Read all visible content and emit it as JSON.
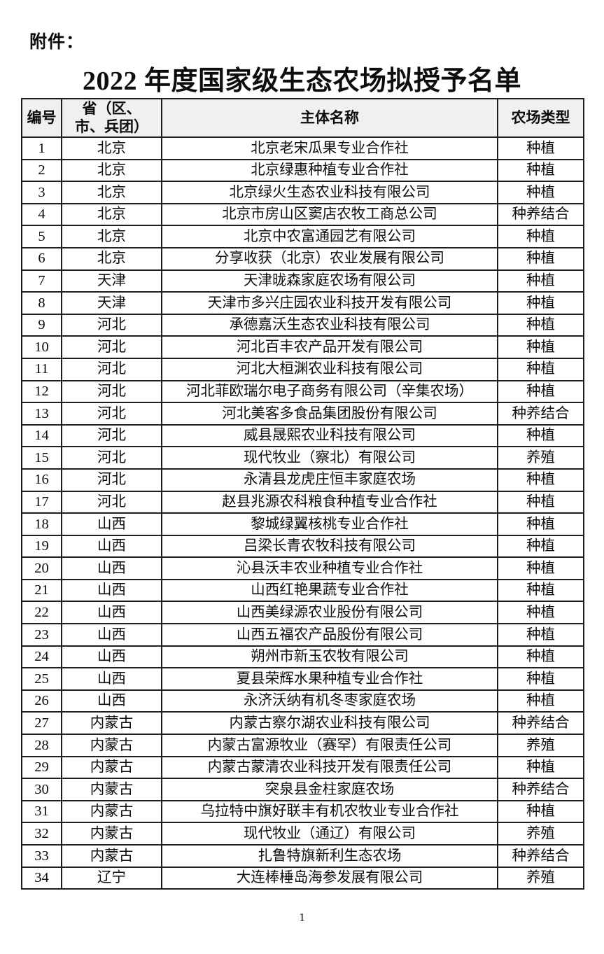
{
  "page": {
    "attachment_label": "附件：",
    "title": "2022 年度国家级生态农场拟授予名单",
    "page_number": "1"
  },
  "colors": {
    "header_row_bg": "#f0f0f0",
    "table_border": "#1f1f1f",
    "page_bg": "#ffffff",
    "text": "#0d0d0d"
  },
  "table": {
    "headers": {
      "number": "编号",
      "province_line1": "省（区、",
      "province_line2": "市、兵团）",
      "entity_name": "主体名称",
      "farm_type": "农场类型"
    },
    "rows": [
      {
        "no": "1",
        "province": "北京",
        "name": "北京老宋瓜果专业合作社",
        "type": "种植"
      },
      {
        "no": "2",
        "province": "北京",
        "name": "北京绿惠种植专业合作社",
        "type": "种植"
      },
      {
        "no": "3",
        "province": "北京",
        "name": "北京绿火生态农业科技有限公司",
        "type": "种植"
      },
      {
        "no": "4",
        "province": "北京",
        "name": "北京市房山区窦店农牧工商总公司",
        "type": "种养结合"
      },
      {
        "no": "5",
        "province": "北京",
        "name": "北京中农富通园艺有限公司",
        "type": "种植"
      },
      {
        "no": "6",
        "province": "北京",
        "name": "分享收获（北京）农业发展有限公司",
        "type": "种植"
      },
      {
        "no": "7",
        "province": "天津",
        "name": "天津昽森家庭农场有限公司",
        "type": "种植"
      },
      {
        "no": "8",
        "province": "天津",
        "name": "天津市多兴庄园农业科技开发有限公司",
        "type": "种植"
      },
      {
        "no": "9",
        "province": "河北",
        "name": "承德嘉沃生态农业科技有限公司",
        "type": "种植"
      },
      {
        "no": "10",
        "province": "河北",
        "name": "河北百丰农产品开发有限公司",
        "type": "种植"
      },
      {
        "no": "11",
        "province": "河北",
        "name": "河北大桓渊农业科技有限公司",
        "type": "种植"
      },
      {
        "no": "12",
        "province": "河北",
        "name": "河北菲欧瑞尔电子商务有限公司（辛集农场）",
        "type": "种植"
      },
      {
        "no": "13",
        "province": "河北",
        "name": "河北美客多食品集团股份有限公司",
        "type": "种养结合"
      },
      {
        "no": "14",
        "province": "河北",
        "name": "威县晟熙农业科技有限公司",
        "type": "种植"
      },
      {
        "no": "15",
        "province": "河北",
        "name": "现代牧业（察北）有限公司",
        "type": "养殖"
      },
      {
        "no": "16",
        "province": "河北",
        "name": "永清县龙虎庄恒丰家庭农场",
        "type": "种植"
      },
      {
        "no": "17",
        "province": "河北",
        "name": "赵县兆源农科粮食种植专业合作社",
        "type": "种植"
      },
      {
        "no": "18",
        "province": "山西",
        "name": "黎城绿翼核桃专业合作社",
        "type": "种植"
      },
      {
        "no": "19",
        "province": "山西",
        "name": "吕梁长青农牧科技有限公司",
        "type": "种植"
      },
      {
        "no": "20",
        "province": "山西",
        "name": "沁县沃丰农业种植专业合作社",
        "type": "种植"
      },
      {
        "no": "21",
        "province": "山西",
        "name": "山西红艳果蔬专业合作社",
        "type": "种植"
      },
      {
        "no": "22",
        "province": "山西",
        "name": "山西美绿源农业股份有限公司",
        "type": "种植"
      },
      {
        "no": "23",
        "province": "山西",
        "name": "山西五福农产品股份有限公司",
        "type": "种植"
      },
      {
        "no": "24",
        "province": "山西",
        "name": "朔州市新玉农牧有限公司",
        "type": "种植"
      },
      {
        "no": "25",
        "province": "山西",
        "name": "夏县荣辉水果种植专业合作社",
        "type": "种植"
      },
      {
        "no": "26",
        "province": "山西",
        "name": "永济沃纳有机冬枣家庭农场",
        "type": "种植"
      },
      {
        "no": "27",
        "province": "内蒙古",
        "name": "内蒙古察尔湖农业科技有限公司",
        "type": "种养结合"
      },
      {
        "no": "28",
        "province": "内蒙古",
        "name": "内蒙古富源牧业（赛罕）有限责任公司",
        "type": "养殖"
      },
      {
        "no": "29",
        "province": "内蒙古",
        "name": "内蒙古蒙清农业科技开发有限责任公司",
        "type": "种植"
      },
      {
        "no": "30",
        "province": "内蒙古",
        "name": "突泉县金柱家庭农场",
        "type": "种养结合"
      },
      {
        "no": "31",
        "province": "内蒙古",
        "name": "乌拉特中旗好联丰有机农牧业专业合作社",
        "type": "种植"
      },
      {
        "no": "32",
        "province": "内蒙古",
        "name": "现代牧业（通辽）有限公司",
        "type": "养殖"
      },
      {
        "no": "33",
        "province": "内蒙古",
        "name": "扎鲁特旗新利生态农场",
        "type": "种养结合"
      },
      {
        "no": "34",
        "province": "辽宁",
        "name": "大连棒棰岛海参发展有限公司",
        "type": "养殖"
      }
    ]
  }
}
